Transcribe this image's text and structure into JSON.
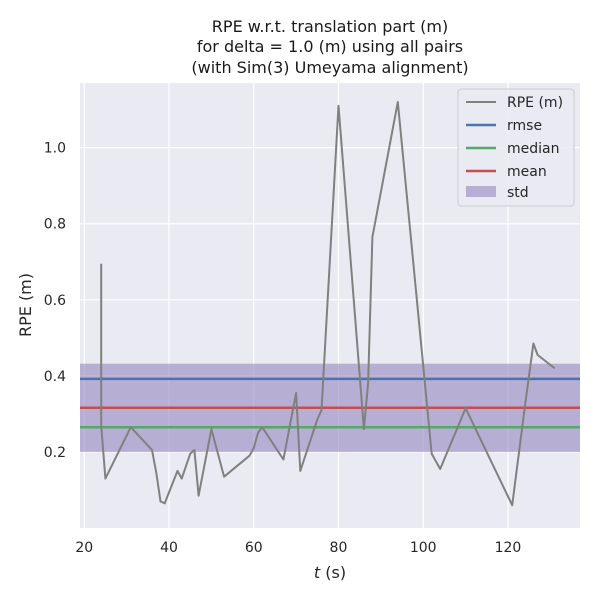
{
  "chart_data": {
    "type": "line",
    "title_lines": [
      "RPE w.r.t. translation part (m)",
      "for delta = 1.0 (m) using all pairs",
      "(with Sim(3) Umeyama alignment)"
    ],
    "xlabel_italic": "t",
    "xlabel_rest": " (s)",
    "ylabel": "RPE (m)",
    "xlim": [
      19,
      137
    ],
    "ylim": [
      0.0,
      1.17
    ],
    "xticks": [
      20,
      40,
      60,
      80,
      100,
      120
    ],
    "yticks": [
      0.2,
      0.4,
      0.6,
      0.8,
      1.0
    ],
    "ytick_labels": [
      "0.2",
      "0.4",
      "0.6",
      "0.8",
      "1.0"
    ],
    "grid": true,
    "legend_position": "top-right",
    "series": [
      {
        "name": "RPE (m)",
        "color": "#808080",
        "x": [
          24,
          24,
          24,
          25,
          31,
          36,
          37,
          38,
          39,
          42,
          43,
          45,
          46,
          47,
          50,
          53,
          59,
          60,
          61,
          62,
          67,
          70,
          71,
          75,
          76,
          80,
          86,
          87,
          88,
          94,
          102,
          104,
          110,
          121,
          124,
          126,
          127,
          131
        ],
        "y": [
          0.695,
          0.4,
          0.27,
          0.13,
          0.265,
          0.205,
          0.145,
          0.07,
          0.065,
          0.15,
          0.13,
          0.195,
          0.205,
          0.085,
          0.26,
          0.135,
          0.19,
          0.21,
          0.25,
          0.265,
          0.18,
          0.355,
          0.15,
          0.285,
          0.31,
          1.11,
          0.26,
          0.38,
          0.765,
          1.12,
          0.195,
          0.155,
          0.315,
          0.06,
          0.32,
          0.485,
          0.455,
          0.42
        ]
      }
    ],
    "stats": {
      "rmse": {
        "name": "rmse",
        "value": 0.392,
        "color": "#4c72b0"
      },
      "median": {
        "name": "median",
        "value": 0.265,
        "color": "#55a868"
      },
      "mean": {
        "name": "mean",
        "value": 0.316,
        "color": "#c44e52"
      },
      "std": {
        "name": "std",
        "low": 0.2,
        "high": 0.432,
        "color": "#8172b3"
      }
    }
  }
}
